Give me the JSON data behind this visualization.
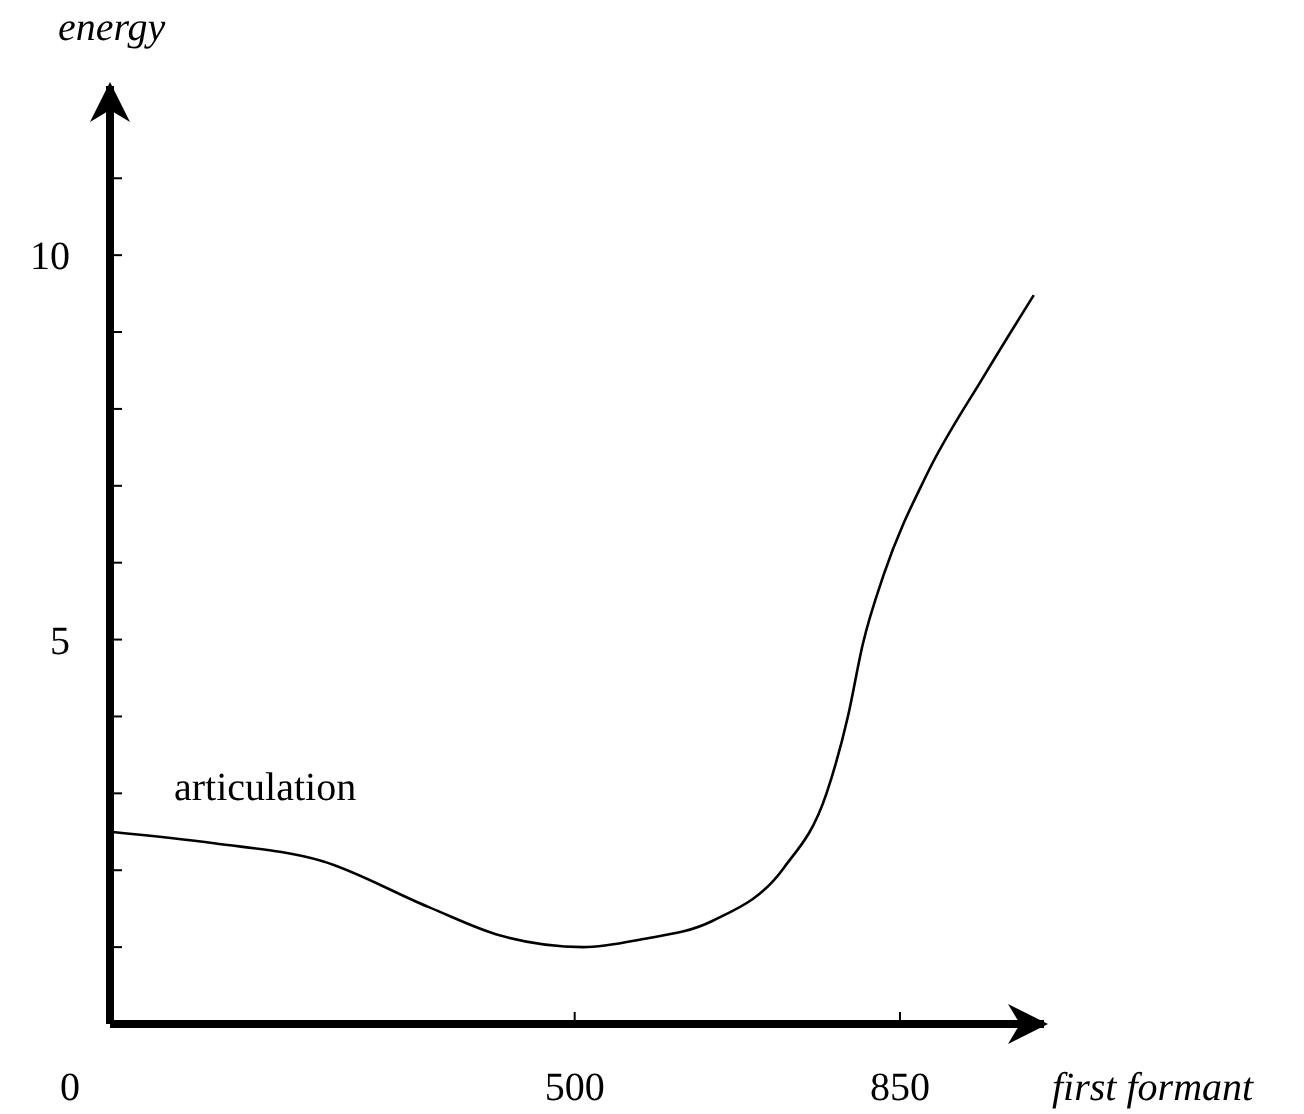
{
  "chart_data": {
    "type": "line",
    "xlabel": "first formant",
    "ylabel": "energy",
    "xlim": [
      0,
      1005
    ],
    "ylim": [
      0,
      12.2
    ],
    "xticks": [
      0,
      500,
      850
    ],
    "yticks": [
      {
        "value": 1,
        "label": null
      },
      {
        "value": 2,
        "label": null
      },
      {
        "value": 3,
        "label": null
      },
      {
        "value": 4,
        "label": null
      },
      5,
      {
        "value": 6,
        "label": null
      },
      {
        "value": 7,
        "label": null
      },
      {
        "value": 8,
        "label": null
      },
      {
        "value": 9,
        "label": null
      },
      10,
      {
        "value": 11,
        "label": null
      }
    ],
    "grid": false,
    "marker": "none",
    "line_style": "solid",
    "series": [
      {
        "name": "articulation",
        "color": "#000000",
        "x": [
          0,
          112,
          228,
          343,
          420,
          509,
          571,
          648,
          725,
          771,
          794,
          810,
          833,
          879,
          941,
          994
        ],
        "values": [
          2.5,
          2.35,
          2.12,
          1.52,
          1.15,
          1.0,
          1.1,
          1.34,
          2.03,
          3.0,
          4.0,
          4.94,
          5.86,
          7.15,
          8.44,
          9.48
        ]
      }
    ]
  }
}
